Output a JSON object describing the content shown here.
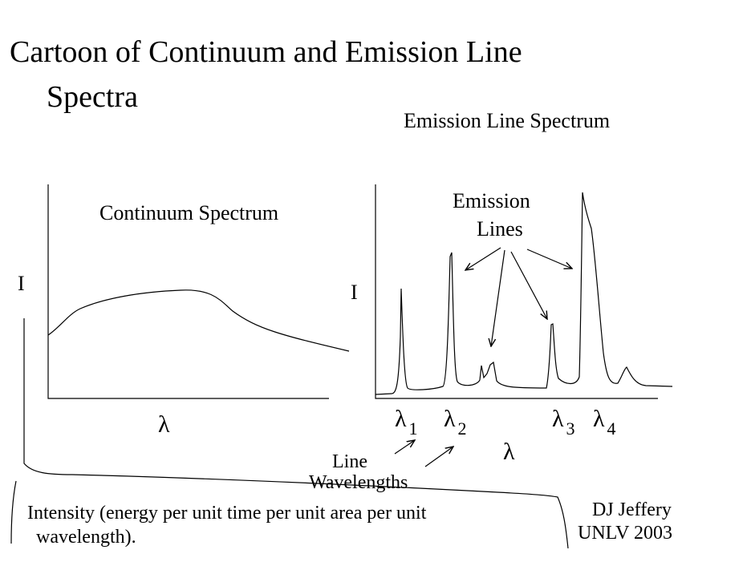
{
  "title": {
    "line1": "Cartoon of Continuum and Emission Line",
    "line2": "Spectra"
  },
  "continuum_panel": {
    "label": "Continuum Spectrum",
    "y_axis_label": "I",
    "x_axis_label": "λ"
  },
  "emission_panel": {
    "title": "Emission Line  Spectrum",
    "annotation_line1": "Emission",
    "annotation_line2": "Lines",
    "y_axis_label": "I",
    "x_axis_label": "λ",
    "wavelength_labels": [
      {
        "symbol": "λ",
        "index": "1"
      },
      {
        "symbol": "λ",
        "index": "2"
      },
      {
        "symbol": "λ",
        "index": "3"
      },
      {
        "symbol": "λ",
        "index": "4"
      }
    ],
    "line_wavelengths_line1": "Line",
    "line_wavelengths_line2": "Wavelengths"
  },
  "footnote": {
    "line1": "Intensity (energy per unit time per unit area per unit",
    "line2": "wavelength)."
  },
  "credit": {
    "line1": "DJ Jeffery",
    "line2": "UNLV 2003"
  }
}
